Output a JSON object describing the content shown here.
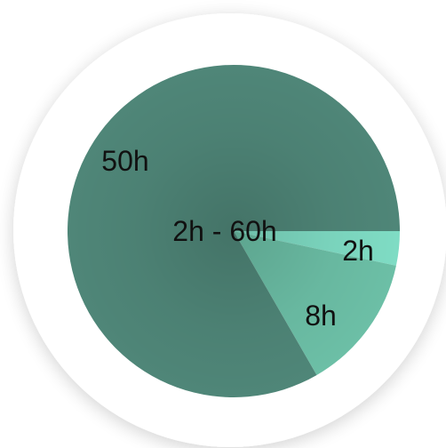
{
  "chart_data": {
    "type": "pie",
    "center_label": "2h - 60h",
    "slices": [
      {
        "label": "2h",
        "value": 2,
        "color": "#7fdcc4"
      },
      {
        "label": "8h",
        "value": 8,
        "color": "#6cbfa6"
      },
      {
        "label": "50h",
        "value": 50,
        "color": "#4f8678"
      }
    ],
    "ring_color": "#ffffff",
    "start_direction": "east",
    "direction": "clockwise"
  }
}
